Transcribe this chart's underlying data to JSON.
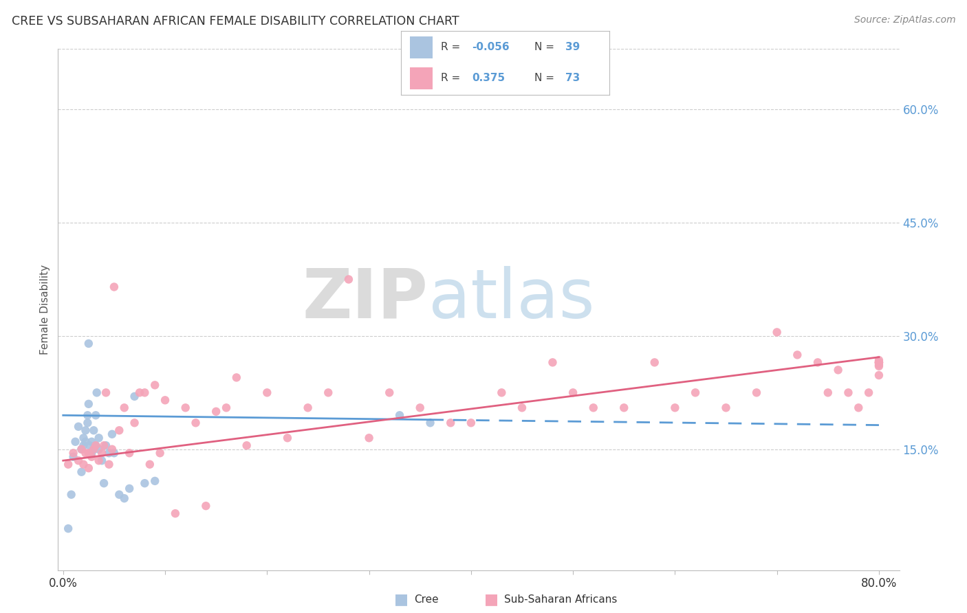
{
  "title": "CREE VS SUBSAHARAN AFRICAN FEMALE DISABILITY CORRELATION CHART",
  "source": "Source: ZipAtlas.com",
  "ylabel": "Female Disability",
  "ytick_labels": [
    "15.0%",
    "30.0%",
    "45.0%",
    "60.0%"
  ],
  "ytick_values": [
    0.15,
    0.3,
    0.45,
    0.6
  ],
  "xlim": [
    -0.005,
    0.82
  ],
  "ylim": [
    -0.01,
    0.68
  ],
  "watermark_part1": "ZIP",
  "watermark_part2": "atlas",
  "cree_R": "-0.056",
  "cree_N": "39",
  "subsaharan_R": "0.375",
  "subsaharan_N": "73",
  "cree_color": "#aac4e0",
  "subsaharan_color": "#f4a4b8",
  "cree_line_color": "#5b9bd5",
  "subsaharan_line_color": "#e06080",
  "cree_line_solid_end": 0.36,
  "cree_line_start_y": 0.195,
  "cree_line_end_y": 0.182,
  "sub_line_start_y": 0.135,
  "sub_line_end_y": 0.272,
  "background_color": "#ffffff",
  "cree_x": [
    0.005,
    0.008,
    0.01,
    0.012,
    0.015,
    0.018,
    0.018,
    0.02,
    0.02,
    0.022,
    0.022,
    0.024,
    0.024,
    0.025,
    0.025,
    0.026,
    0.028,
    0.028,
    0.03,
    0.03,
    0.032,
    0.032,
    0.033,
    0.035,
    0.035,
    0.038,
    0.04,
    0.042,
    0.045,
    0.048,
    0.05,
    0.055,
    0.06,
    0.065,
    0.07,
    0.08,
    0.09,
    0.33,
    0.36
  ],
  "cree_y": [
    0.045,
    0.09,
    0.14,
    0.16,
    0.18,
    0.12,
    0.15,
    0.155,
    0.165,
    0.16,
    0.175,
    0.185,
    0.195,
    0.21,
    0.29,
    0.155,
    0.145,
    0.16,
    0.15,
    0.175,
    0.155,
    0.195,
    0.225,
    0.15,
    0.165,
    0.135,
    0.105,
    0.155,
    0.145,
    0.17,
    0.145,
    0.09,
    0.085,
    0.098,
    0.22,
    0.105,
    0.108,
    0.195,
    0.185
  ],
  "subsaharan_x": [
    0.005,
    0.01,
    0.015,
    0.018,
    0.02,
    0.022,
    0.025,
    0.025,
    0.028,
    0.03,
    0.032,
    0.035,
    0.038,
    0.04,
    0.042,
    0.045,
    0.048,
    0.05,
    0.055,
    0.06,
    0.065,
    0.07,
    0.075,
    0.08,
    0.085,
    0.09,
    0.095,
    0.1,
    0.11,
    0.12,
    0.13,
    0.14,
    0.15,
    0.16,
    0.17,
    0.18,
    0.2,
    0.22,
    0.24,
    0.26,
    0.28,
    0.3,
    0.32,
    0.35,
    0.38,
    0.4,
    0.43,
    0.45,
    0.48,
    0.5,
    0.52,
    0.55,
    0.58,
    0.6,
    0.62,
    0.65,
    0.68,
    0.7,
    0.72,
    0.74,
    0.75,
    0.76,
    0.77,
    0.78,
    0.79,
    0.8,
    0.8,
    0.8,
    0.8,
    0.8,
    0.8,
    0.8,
    0.8
  ],
  "subsaharan_y": [
    0.13,
    0.145,
    0.135,
    0.15,
    0.13,
    0.145,
    0.125,
    0.145,
    0.14,
    0.15,
    0.155,
    0.135,
    0.145,
    0.155,
    0.225,
    0.13,
    0.15,
    0.365,
    0.175,
    0.205,
    0.145,
    0.185,
    0.225,
    0.225,
    0.13,
    0.235,
    0.145,
    0.215,
    0.065,
    0.205,
    0.185,
    0.075,
    0.2,
    0.205,
    0.245,
    0.155,
    0.225,
    0.165,
    0.205,
    0.225,
    0.375,
    0.165,
    0.225,
    0.205,
    0.185,
    0.185,
    0.225,
    0.205,
    0.265,
    0.225,
    0.205,
    0.205,
    0.265,
    0.205,
    0.225,
    0.205,
    0.225,
    0.305,
    0.275,
    0.265,
    0.225,
    0.255,
    0.225,
    0.205,
    0.225,
    0.248,
    0.265,
    0.268,
    0.26,
    0.262,
    0.265,
    0.265,
    0.265
  ]
}
